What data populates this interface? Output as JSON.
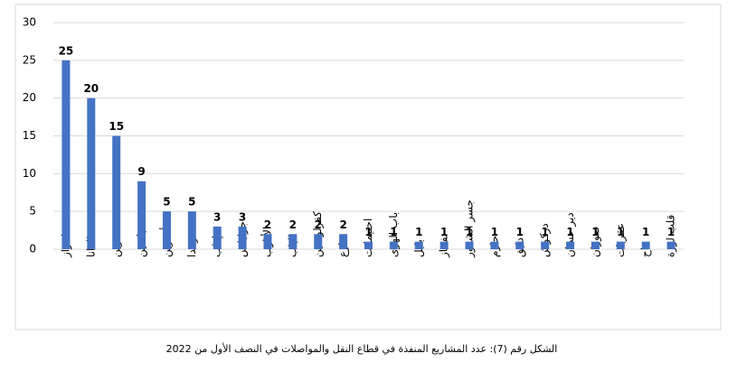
{
  "chart_data": {
    "type": "bar",
    "caption": "الشكل رقم (7): عدد المشاريع المنفذة في قطاع النقل والمواصلات في النصف الأول من 2022",
    "categories": [
      "اعزاز",
      "الدانا",
      "عفرين",
      "قباسين",
      "أخترين",
      "سرمدا",
      "إدلب",
      "جرابلس",
      "الأتارب",
      "الباب",
      "كفرلوسين",
      "مارع",
      "احتيملات",
      "باب الهوى",
      "بلبل",
      "تفتناز",
      "جسر الشغور",
      "حارم",
      "دابق",
      "دركوش",
      "دير حسان",
      "صوران",
      "عقربات",
      "قاح",
      "قلب لوزة"
    ],
    "values": [
      25,
      20,
      15,
      9,
      5,
      5,
      3,
      3,
      2,
      2,
      2,
      2,
      1,
      1,
      1,
      1,
      1,
      1,
      1,
      1,
      1,
      1,
      1,
      1,
      1
    ],
    "color": "#4472c4",
    "ylim": [
      0,
      30
    ],
    "yticks": [
      0,
      5,
      10,
      15,
      20,
      25,
      30
    ],
    "grid": true
  }
}
